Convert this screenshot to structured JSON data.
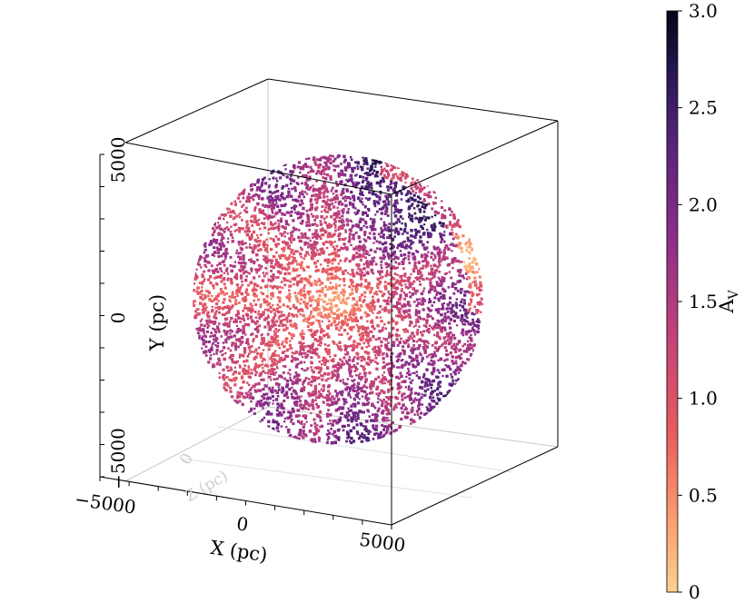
{
  "chart_data": {
    "type": "scatter",
    "projection": "3d",
    "title": "",
    "xlabel": "X (pc)",
    "ylabel": "Y (pc)",
    "zlabel": "Z (pc)",
    "xlim": [
      -5000,
      5000
    ],
    "ylim": [
      -5000,
      5000
    ],
    "x_ticks": [
      "−5000",
      "0",
      "5000"
    ],
    "y_ticks": [
      "−5000",
      "0",
      "5000"
    ],
    "z_ticks": [
      "0"
    ],
    "colorbar": {
      "label": "A",
      "label_subscript": "V",
      "colormap": "magma_r",
      "range": [
        0,
        3.0
      ],
      "ticks": [
        "0",
        "0.5",
        "1.0",
        "1.5",
        "2.0",
        "2.5",
        "3.0"
      ]
    },
    "description_values": {
      "sphere_radius_pc": 5000,
      "center_av": 0.1,
      "edge_av_typical": 2.0,
      "dark_sector_av": 3.0
    }
  }
}
